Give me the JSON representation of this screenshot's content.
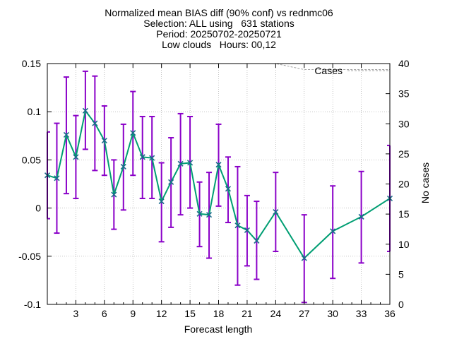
{
  "title_lines": [
    "Normalized mean BIAS diff (90% conf) vs rednmc06",
    "Selection: ALL using   631 stations",
    "Period: 20250702-20250721",
    "Low clouds   Hours: 00,12"
  ],
  "colors": {
    "line": "#009e73",
    "marker": "#1a6a8a",
    "errorbar": "#8a00c8",
    "cases": "#a0a0a0",
    "grid": "#a0a0a0"
  },
  "chart_data": {
    "type": "line",
    "xlabel": "Forecast length",
    "ylabel": "",
    "y2label": "No cases",
    "xlim": [
      0,
      36
    ],
    "ylim": [
      -0.1,
      0.15
    ],
    "y2lim": [
      0,
      40
    ],
    "x_ticks": [
      "3",
      "6",
      "9",
      "12",
      "15",
      "18",
      "21",
      "24",
      "27",
      "30",
      "33",
      "36"
    ],
    "x_tick_values": [
      3,
      6,
      9,
      12,
      15,
      18,
      21,
      24,
      27,
      30,
      33,
      36
    ],
    "y_ticks": [
      "0.15",
      "0.1",
      "0.05",
      "0",
      "-0.05",
      "-0.1"
    ],
    "y_tick_values": [
      0.15,
      0.1,
      0.05,
      0,
      -0.05,
      -0.1
    ],
    "y2_ticks": [
      "40",
      "35",
      "30",
      "25",
      "20",
      "15",
      "10",
      "5",
      "0"
    ],
    "y2_tick_values": [
      40,
      35,
      30,
      25,
      20,
      15,
      10,
      5,
      0
    ],
    "grid": true,
    "legend": "top-right",
    "series": [
      {
        "name": "",
        "x": [
          0,
          1,
          2,
          3,
          4,
          5,
          6,
          7,
          8,
          9,
          10,
          11,
          12,
          13,
          14,
          15,
          16,
          17,
          18,
          19,
          20,
          21,
          22,
          24,
          27,
          30,
          33,
          36
        ],
        "values": [
          0.034,
          0.031,
          0.076,
          0.053,
          0.101,
          0.088,
          0.07,
          0.014,
          0.043,
          0.078,
          0.053,
          0.052,
          0.007,
          0.027,
          0.046,
          0.047,
          -0.006,
          -0.007,
          0.045,
          0.02,
          -0.018,
          -0.023,
          -0.034,
          -0.004,
          -0.052,
          -0.024,
          -0.009,
          0.01
        ],
        "lower": [
          -0.011,
          -0.026,
          0.015,
          0.01,
          0.061,
          0.039,
          0.034,
          -0.022,
          -0.002,
          0.034,
          0.01,
          0.01,
          -0.035,
          -0.02,
          -0.007,
          0.0,
          -0.04,
          -0.052,
          0.002,
          -0.015,
          -0.08,
          -0.06,
          -0.074,
          -0.045,
          -0.098,
          -0.073,
          -0.057,
          -0.045
        ]
      },
      {
        "name": "",
        "x": [
          0,
          1,
          2,
          3,
          4,
          5,
          6,
          7,
          8,
          9,
          10,
          11,
          12,
          13,
          14,
          15,
          16,
          17,
          18,
          19,
          20,
          21,
          22,
          24,
          27,
          30,
          33,
          36
        ],
        "values": [
          0.079,
          0.088,
          0.136,
          0.096,
          0.142,
          0.137,
          0.106,
          0.05,
          0.087,
          0.121,
          0.095,
          0.095,
          0.047,
          0.073,
          0.098,
          0.095,
          0.027,
          0.037,
          0.087,
          0.053,
          0.043,
          0.013,
          0.007,
          0.037,
          -0.007,
          0.023,
          0.038,
          0.065
        ]
      },
      {
        "name": "Cases",
        "axis": "right",
        "x": [
          0,
          1,
          2,
          3,
          4,
          5,
          6,
          7,
          8,
          9,
          10,
          11,
          12,
          13,
          14,
          15,
          16,
          17,
          18,
          19,
          20,
          21,
          22,
          24,
          27,
          30,
          33,
          36
        ],
        "values": [
          40,
          40,
          40,
          40,
          40,
          40,
          40,
          40,
          40,
          40,
          40,
          40,
          40,
          40,
          40,
          40,
          40,
          40,
          40,
          40,
          40,
          40,
          40,
          40,
          39,
          39,
          39,
          39
        ]
      }
    ]
  }
}
